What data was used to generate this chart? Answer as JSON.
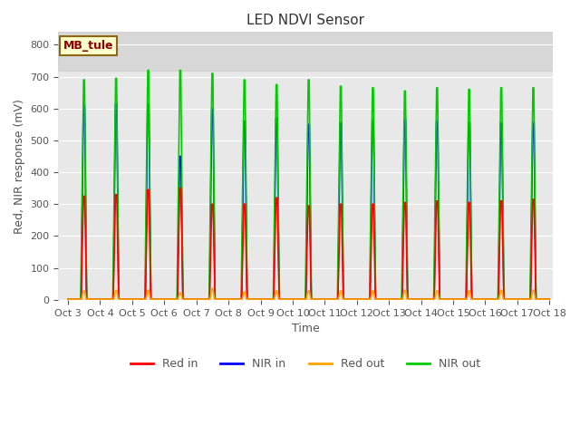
{
  "title": "LED NDVI Sensor",
  "ylabel": "Red, NIR response (mV)",
  "xlabel": "Time",
  "ylim": [
    0,
    840
  ],
  "legend_label": "MB_tule",
  "background_color": "#ffffff",
  "plot_bg_color": "#e8e8e8",
  "series_colors": {
    "red_in": "#ff0000",
    "nir_in": "#0000ff",
    "red_out": "#ffa500",
    "nir_out": "#00cc00"
  },
  "legend_entries": [
    "Red in",
    "NIR in",
    "Red out",
    "NIR out"
  ],
  "x_tick_labels": [
    "Oct 3",
    "Oct 4",
    "Oct 5",
    "Oct 6",
    "Oct 7",
    "Oct 8",
    "Oct 9",
    "Oct 10",
    "Oct 11",
    "Oct 12",
    "Oct 13",
    "Oct 14",
    "Oct 15",
    "Oct 16",
    "Oct 17",
    "Oct 18"
  ],
  "x_tick_positions": [
    0,
    1,
    2,
    3,
    4,
    5,
    6,
    7,
    8,
    9,
    10,
    11,
    12,
    13,
    14,
    15
  ],
  "shaded_region_y": 720,
  "peaks_red_in": [
    325,
    330,
    345,
    350,
    300,
    300,
    320,
    295,
    300,
    300,
    305,
    310,
    305,
    310,
    315
  ],
  "peaks_nir_in": [
    610,
    615,
    615,
    450,
    600,
    560,
    570,
    550,
    555,
    565,
    565,
    560,
    555,
    555,
    555
  ],
  "peaks_nir_out": [
    690,
    695,
    720,
    720,
    710,
    690,
    675,
    690,
    670,
    665,
    655,
    665,
    660,
    665,
    665
  ],
  "peaks_red_out": [
    28,
    30,
    30,
    22,
    35,
    25,
    28,
    28,
    28,
    28,
    30,
    28,
    28,
    30,
    30
  ]
}
